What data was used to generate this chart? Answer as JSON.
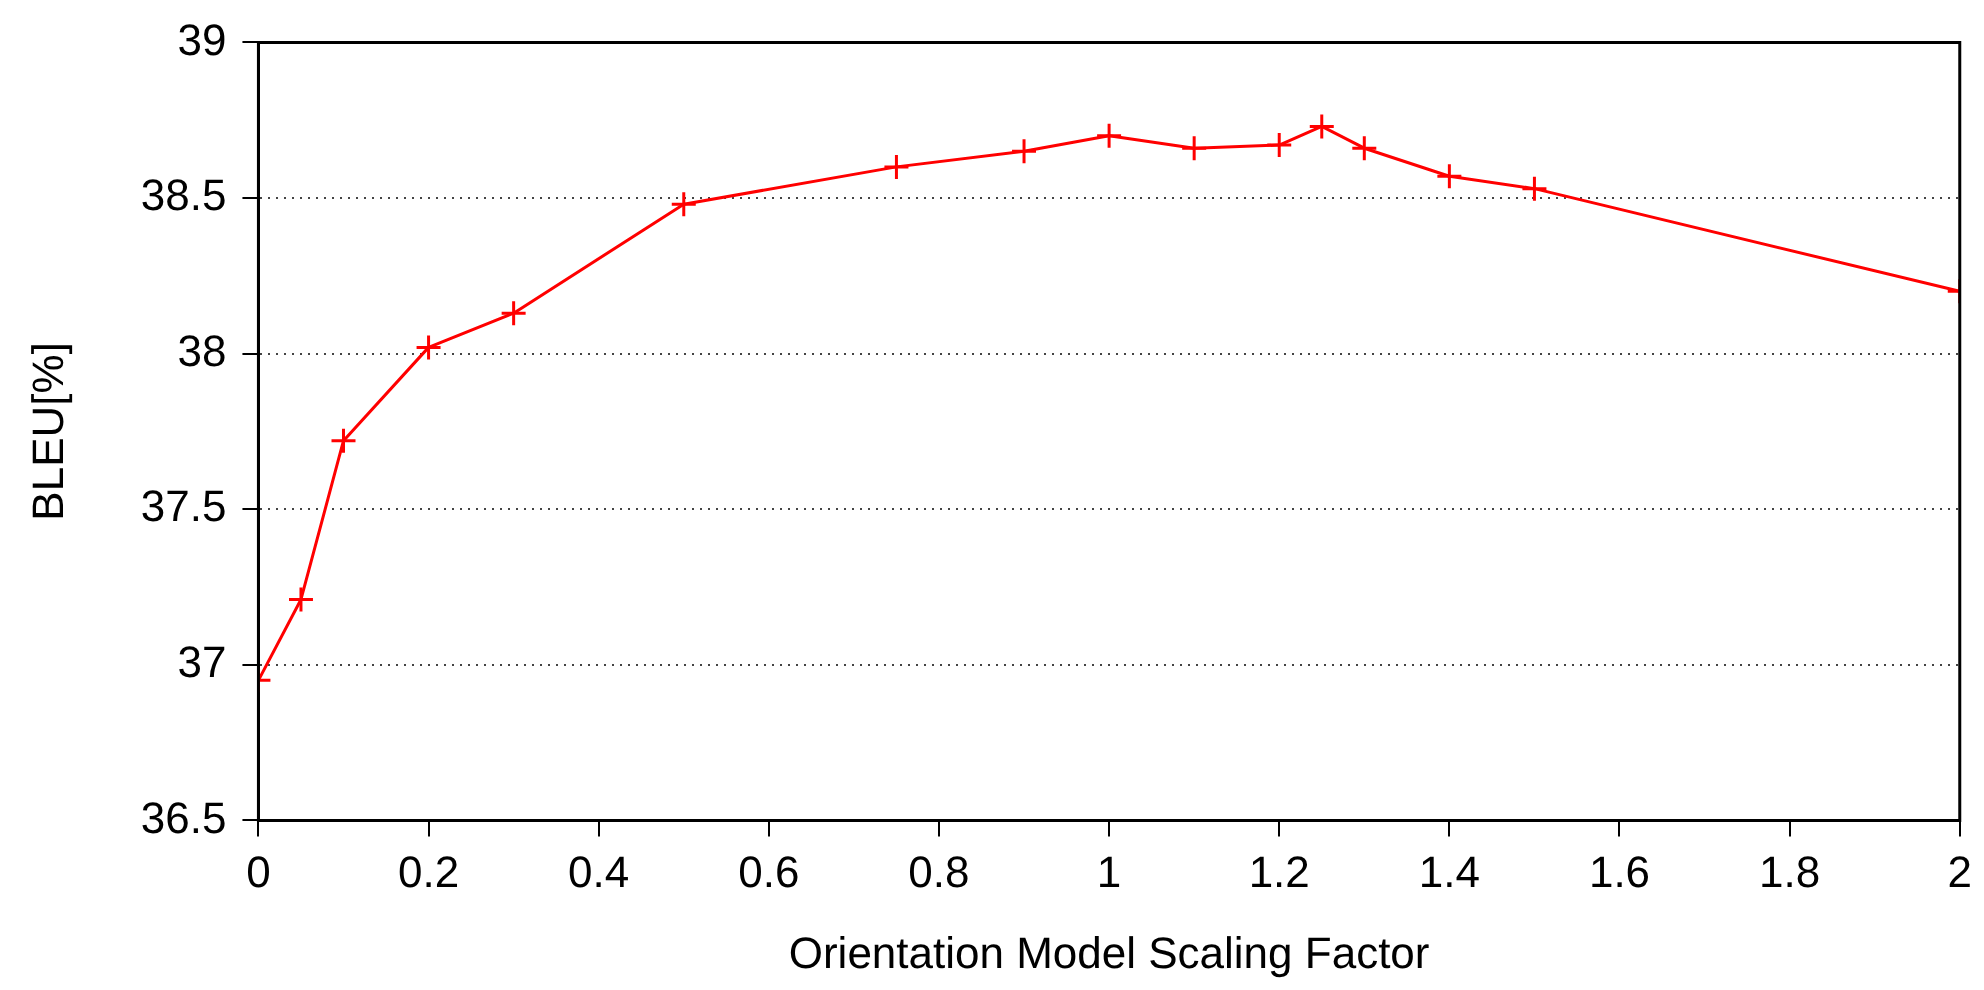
{
  "chart_data": {
    "type": "line",
    "xlabel": "Orientation Model Scaling Factor",
    "ylabel": "BLEU[%]",
    "x": [
      0,
      0.05,
      0.1,
      0.2,
      0.3,
      0.5,
      0.75,
      0.9,
      1,
      1.1,
      1.2,
      1.25,
      1.3,
      1.4,
      1.5,
      2
    ],
    "series": [
      {
        "color": "#ff0000",
        "values": [
          36.95,
          37.21,
          37.72,
          38.02,
          38.13,
          38.48,
          38.6,
          38.65,
          38.7,
          38.66,
          38.67,
          38.73,
          38.66,
          38.57,
          38.53,
          38.2
        ]
      }
    ],
    "xlim": [
      0,
      2
    ],
    "xticks": [
      0,
      0.2,
      0.4,
      0.6,
      0.8,
      1,
      1.2,
      1.4,
      1.6,
      1.8,
      2
    ],
    "ylim": [
      36.5,
      39
    ],
    "yticks": [
      36.5,
      37,
      37.5,
      38,
      38.5,
      39
    ],
    "grid": "y",
    "legend": false,
    "marker": "cross",
    "line_style": "solid"
  }
}
